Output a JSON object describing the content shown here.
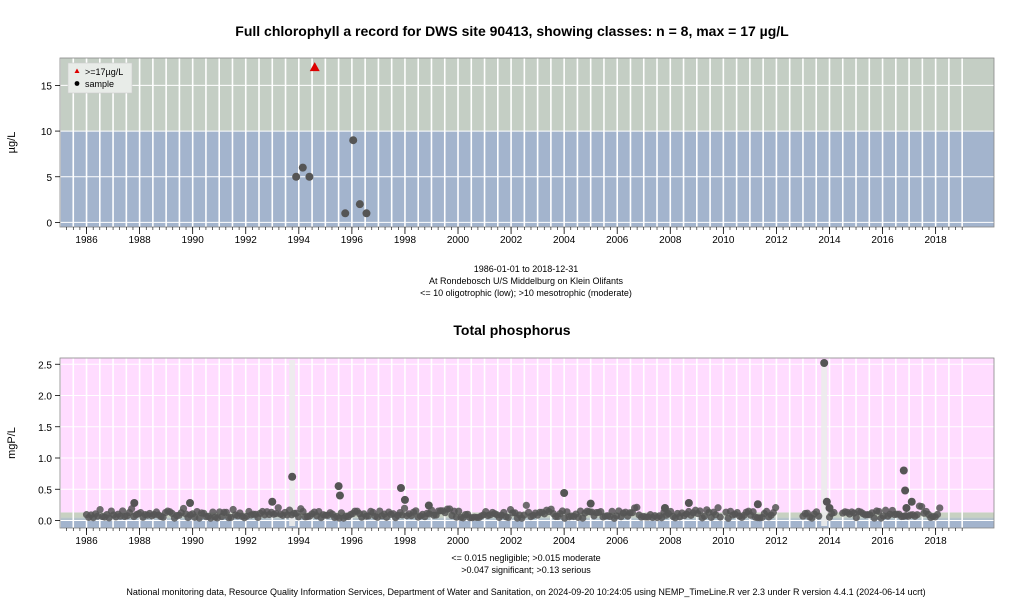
{
  "footer": "National monitoring data, Resource Quality Information Services, Department of Water and Sanitation, on 2024-09-20 10:24:05 using NEMP_TimeLine.R ver 2.3 under R version 4.4.1 (2024-06-14 ucrt)",
  "chart_data": [
    {
      "type": "scatter",
      "title": "Full chlorophyll a record for DWS site 90413, showing classes: n = 8, max = 17 µg/L",
      "ylabel": "µg/L",
      "xlabel": "",
      "xlim": [
        1985.0,
        2020.2
      ],
      "ylim": [
        -0.5,
        18.0
      ],
      "x_ticks": [
        1986,
        1988,
        1990,
        1992,
        1994,
        1996,
        1998,
        2000,
        2002,
        2004,
        2006,
        2008,
        2010,
        2012,
        2014,
        2016,
        2018
      ],
      "y_ticks": [
        0,
        5,
        10,
        15
      ],
      "grid": true,
      "captions": [
        "1986-01-01 to 2018-12-31",
        "At Rondebosch U/S Middelburg on Klein Olifants",
        "<= 10 oligotrophic (low); >10 mesotrophic (moderate)"
      ],
      "legend": {
        "placement": "top-left",
        "entries": [
          {
            "label": ">=17µg/L",
            "marker": "triangle",
            "color": "#dd0000"
          },
          {
            "label": "sample",
            "marker": "circle",
            "color": "#000000"
          }
        ]
      },
      "bands": [
        {
          "from": -0.5,
          "to": 10,
          "color": "#a3b4cd"
        },
        {
          "from": 10,
          "to": 18.0,
          "color": "#c4cec4"
        }
      ],
      "series": [
        {
          "marker": "circle",
          "color": "#555555",
          "x": [
            1993.9,
            1994.15,
            1994.4,
            1995.75,
            1996.05,
            1996.3,
            1996.55
          ],
          "y": [
            5.0,
            6.0,
            5.0,
            1.0,
            9.0,
            2.0,
            1.0
          ]
        },
        {
          "marker": "triangle",
          "color": "#dd0000",
          "x": [
            1994.6
          ],
          "y": [
            17.0
          ]
        }
      ]
    },
    {
      "type": "scatter",
      "title": "Total phosphorus",
      "ylabel": "mgP/L",
      "xlabel": "",
      "xlim": [
        1985.0,
        2020.2
      ],
      "ylim": [
        -0.12,
        2.6
      ],
      "x_ticks": [
        1986,
        1988,
        1990,
        1992,
        1994,
        1996,
        1998,
        2000,
        2002,
        2004,
        2006,
        2008,
        2010,
        2012,
        2014,
        2016,
        2018
      ],
      "y_ticks": [
        0.0,
        0.5,
        1.0,
        1.5,
        2.0,
        2.5
      ],
      "grid": true,
      "captions": [
        "<= 0.015 negligible; >0.015 moderate",
        ">0.047 significant; >0.13 serious"
      ],
      "bands": [
        {
          "from": -0.12,
          "to": 0.015,
          "color": "#a3b4cd"
        },
        {
          "from": 0.015,
          "to": 0.047,
          "color": "#b6c4c8"
        },
        {
          "from": 0.047,
          "to": 0.13,
          "color": "#c8d1c2"
        },
        {
          "from": 0.13,
          "to": 2.6,
          "color": "#ffdcff"
        }
      ],
      "series": [
        {
          "marker": "circle",
          "color": "#555555",
          "outliers": {
            "x": [
              1987.8,
              1989.9,
              1993.0,
              1993.75,
              1995.5,
              1995.55,
              1997.85,
              1998.0,
              1998.9,
              2004.0,
              2005.0,
              2007.8,
              2008.7,
              2011.3,
              2013.8,
              2013.9,
              2014.0,
              2016.8,
              2016.85,
              2017.1,
              2016.9
            ],
            "y": [
              0.28,
              0.28,
              0.3,
              0.7,
              0.55,
              0.4,
              0.52,
              0.33,
              0.24,
              0.44,
              0.27,
              0.2,
              0.28,
              0.26,
              2.52,
              0.3,
              0.2,
              0.8,
              0.48,
              0.3,
              0.2
            ]
          },
          "baseline_segments": [
            [
              1986.0,
              2009.9
            ],
            [
              2010.1,
              2012.0
            ],
            [
              2013.0,
              2013.6
            ],
            [
              2014.0,
              2014.2
            ],
            [
              2014.5,
              2018.2
            ]
          ]
        }
      ]
    }
  ]
}
